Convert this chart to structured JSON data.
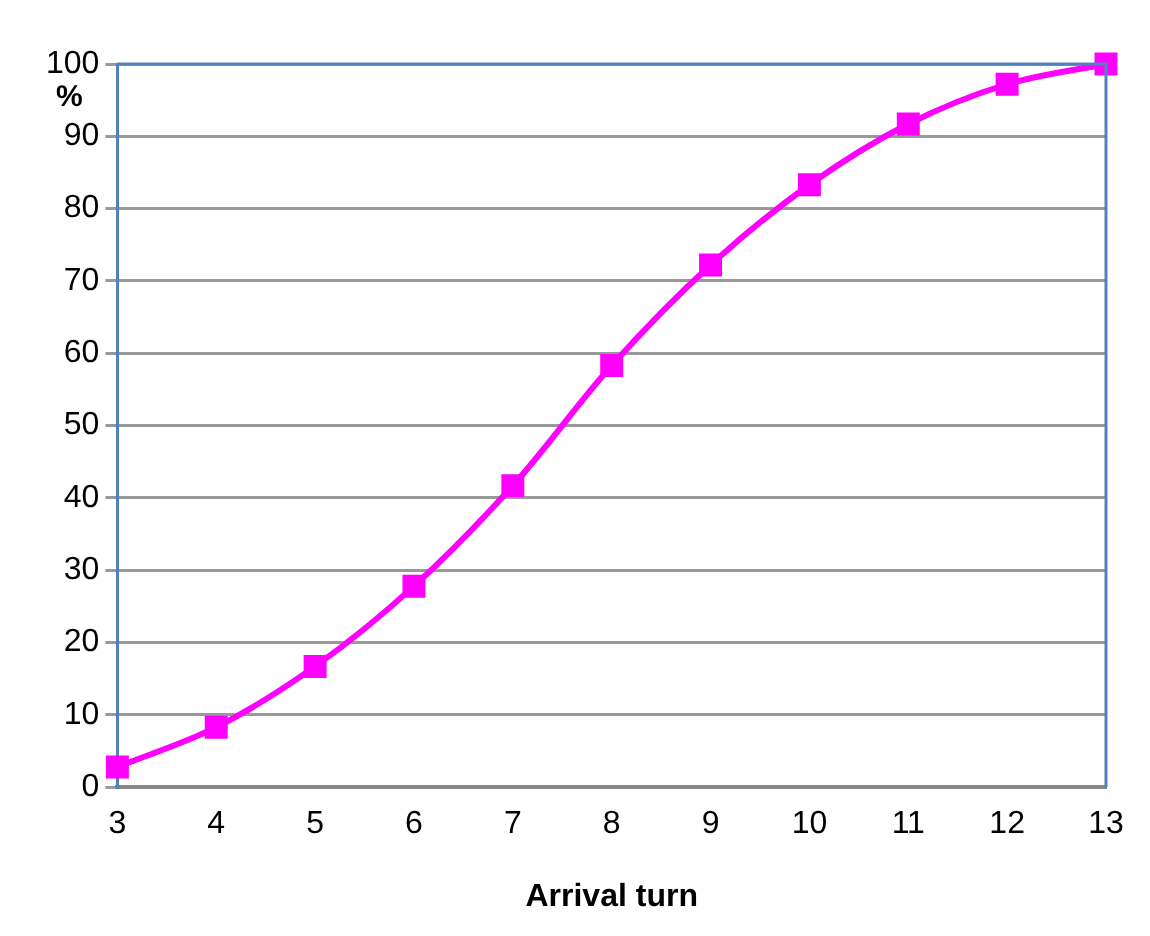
{
  "chart_data": {
    "type": "line",
    "xlabel": "Arrival turn",
    "ylabel": "%",
    "categories": [
      "3",
      "4",
      "5",
      "6",
      "7",
      "8",
      "9",
      "10",
      "11",
      "12",
      "13"
    ],
    "series": [
      {
        "color": "#ff00ff",
        "values": [
          2.8,
          8.3,
          16.7,
          27.8,
          41.7,
          58.3,
          72.2,
          83.3,
          91.7,
          97.2,
          100
        ]
      }
    ],
    "ylim": [
      0,
      100
    ],
    "yticks": [
      0,
      10,
      20,
      30,
      40,
      50,
      60,
      70,
      80,
      90,
      100
    ],
    "grid": "y",
    "legend": false,
    "marker": "square",
    "line_style": "solid"
  }
}
